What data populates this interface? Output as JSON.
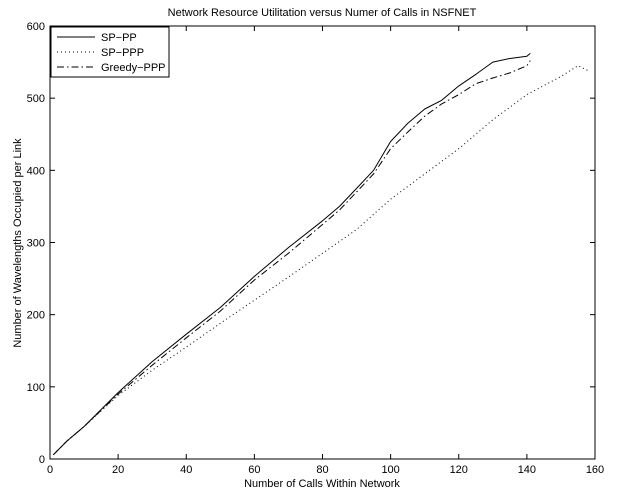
{
  "chart_data": {
    "type": "line",
    "title": "Network Resource Utilitation versus Numer of Calls in NSFNET",
    "xlabel": "Number of Calls Within Network",
    "ylabel": "Number of Wavelengths Occupied per Link",
    "xlim": [
      0,
      160
    ],
    "ylim": [
      0,
      600
    ],
    "xticks": [
      0,
      20,
      40,
      60,
      80,
      100,
      120,
      140,
      160
    ],
    "yticks": [
      0,
      100,
      200,
      300,
      400,
      500,
      600
    ],
    "grid": false,
    "legend_position": "top-left",
    "series": [
      {
        "name": "SP−PP",
        "line_style": "solid",
        "color": "#000000",
        "x": [
          1,
          5,
          10,
          20,
          30,
          40,
          50,
          60,
          70,
          80,
          85,
          90,
          95,
          100,
          105,
          110,
          115,
          120,
          125,
          130,
          135,
          140,
          141
        ],
        "y": [
          6,
          25,
          45,
          92,
          135,
          173,
          210,
          253,
          293,
          330,
          350,
          375,
          400,
          440,
          465,
          485,
          497,
          517,
          533,
          550,
          555,
          558,
          562
        ]
      },
      {
        "name": "SP−PPP",
        "line_style": "dotted",
        "color": "#000000",
        "x": [
          1,
          5,
          10,
          20,
          30,
          40,
          50,
          60,
          70,
          80,
          90,
          100,
          110,
          120,
          130,
          140,
          150,
          155,
          158
        ],
        "y": [
          6,
          25,
          45,
          88,
          123,
          155,
          188,
          220,
          252,
          285,
          318,
          360,
          395,
          430,
          470,
          505,
          530,
          545,
          538
        ]
      },
      {
        "name": "Greedy−PPP",
        "line_style": "dash-dot",
        "color": "#000000",
        "x": [
          1,
          5,
          10,
          20,
          30,
          40,
          50,
          60,
          70,
          80,
          85,
          90,
          95,
          100,
          105,
          110,
          115,
          120,
          125,
          130,
          135,
          140,
          141
        ],
        "y": [
          6,
          25,
          45,
          90,
          130,
          168,
          205,
          248,
          285,
          325,
          345,
          370,
          395,
          430,
          453,
          475,
          492,
          505,
          520,
          528,
          535,
          545,
          552
        ]
      }
    ]
  }
}
